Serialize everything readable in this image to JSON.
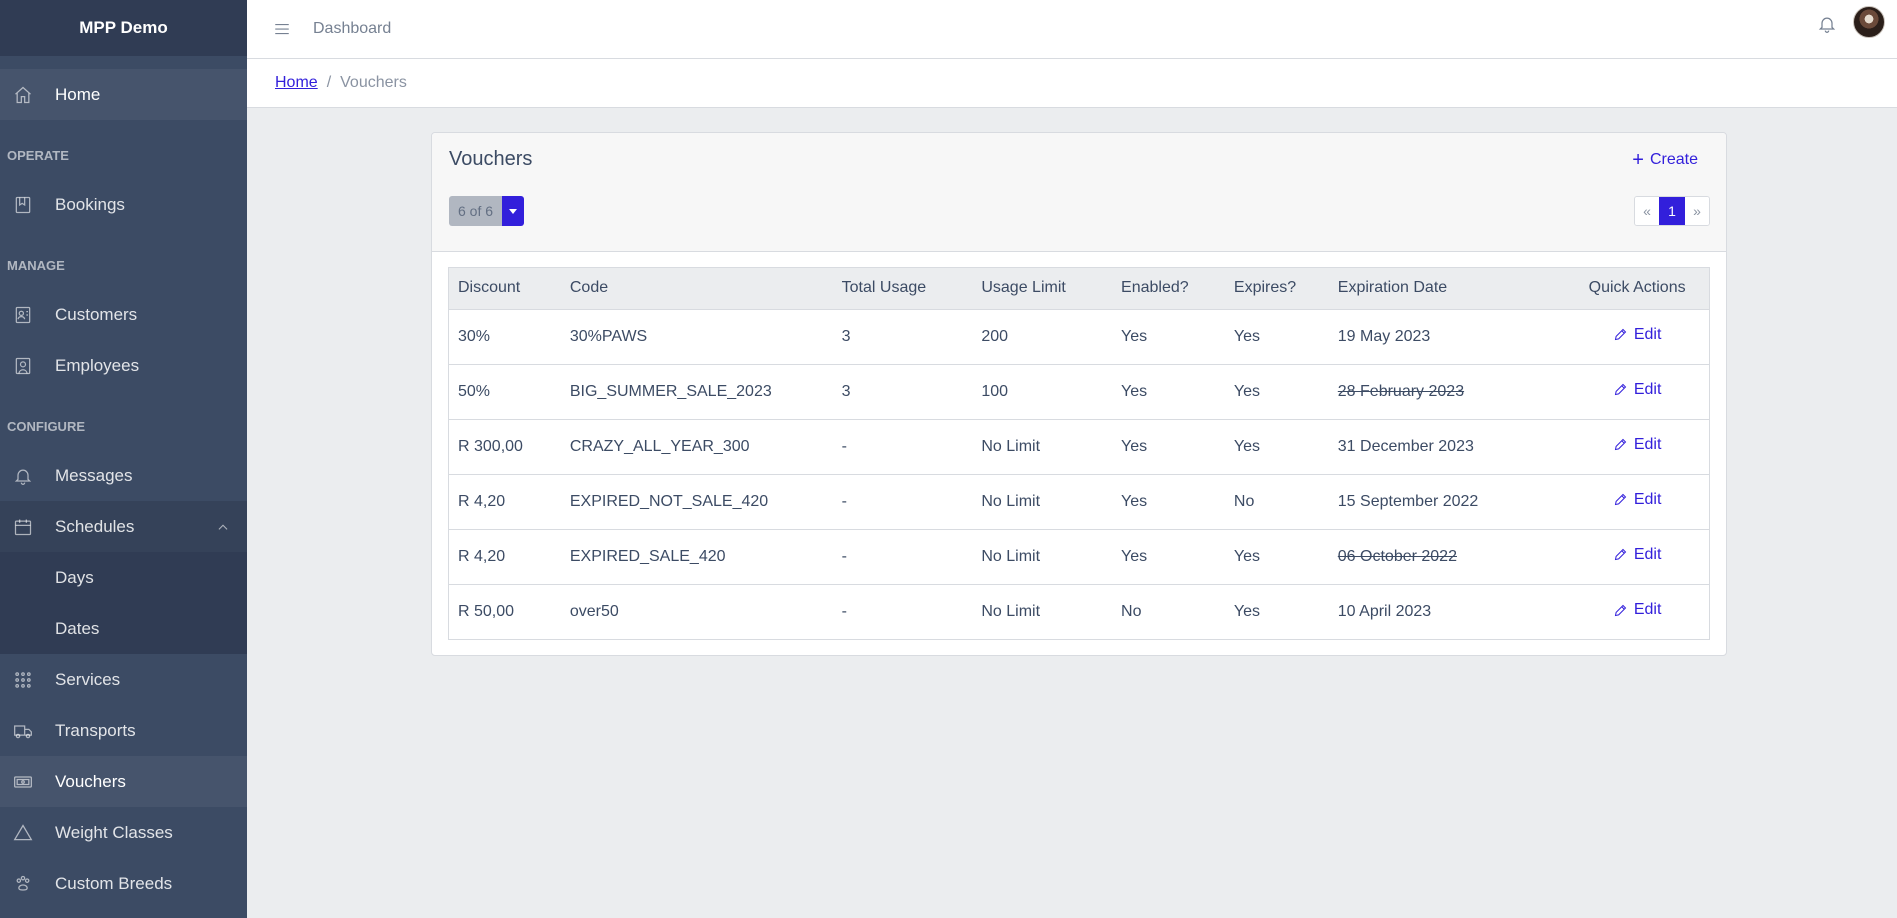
{
  "sidebar": {
    "brand": "MPP Demo",
    "home": "Home",
    "sections": {
      "operate": "OPERATE",
      "manage": "MANAGE",
      "configure": "CONFIGURE"
    },
    "items": {
      "bookings": "Bookings",
      "customers": "Customers",
      "employees": "Employees",
      "messages": "Messages",
      "schedules": "Schedules",
      "days": "Days",
      "dates": "Dates",
      "services": "Services",
      "transports": "Transports",
      "vouchers": "Vouchers",
      "weight_classes": "Weight Classes",
      "custom_breeds": "Custom Breeds"
    }
  },
  "header": {
    "link": "Dashboard"
  },
  "breadcrumb": {
    "home": "Home",
    "separator": "/",
    "current": "Vouchers"
  },
  "card": {
    "title": "Vouchers",
    "create_label": "Create",
    "count_label": "6 of 6",
    "pagination": {
      "prev": "«",
      "current": "1",
      "next": "»"
    }
  },
  "table": {
    "columns": [
      "Discount",
      "Code",
      "Total Usage",
      "Usage Limit",
      "Enabled?",
      "Expires?",
      "Expiration Date",
      "Quick Actions"
    ],
    "action_label": "Edit",
    "rows": [
      {
        "discount": "30%",
        "code": "30%PAWS",
        "total_usage": "3",
        "usage_limit": "200",
        "enabled": "Yes",
        "expires": "Yes",
        "expiration_date": "19 May 2023",
        "expired": false
      },
      {
        "discount": "50%",
        "code": "BIG_SUMMER_SALE_2023",
        "total_usage": "3",
        "usage_limit": "100",
        "enabled": "Yes",
        "expires": "Yes",
        "expiration_date": "28 February 2023",
        "expired": true
      },
      {
        "discount": "R 300,00",
        "code": "CRAZY_ALL_YEAR_300",
        "total_usage": "-",
        "usage_limit": "No Limit",
        "enabled": "Yes",
        "expires": "Yes",
        "expiration_date": "31 December 2023",
        "expired": false
      },
      {
        "discount": "R 4,20",
        "code": "EXPIRED_NOT_SALE_420",
        "total_usage": "-",
        "usage_limit": "No Limit",
        "enabled": "Yes",
        "expires": "No",
        "expiration_date": "15 September 2022",
        "expired": false
      },
      {
        "discount": "R 4,20",
        "code": "EXPIRED_SALE_420",
        "total_usage": "-",
        "usage_limit": "No Limit",
        "enabled": "Yes",
        "expires": "Yes",
        "expiration_date": "06 October 2022",
        "expired": true
      },
      {
        "discount": "R 50,00",
        "code": "over50",
        "total_usage": "-",
        "usage_limit": "No Limit",
        "enabled": "No",
        "expires": "Yes",
        "expiration_date": "10 April 2023",
        "expired": false
      }
    ]
  },
  "colors": {
    "sidebar": "#3c4b64",
    "primary": "#321fdb",
    "background": "#ebedef"
  }
}
